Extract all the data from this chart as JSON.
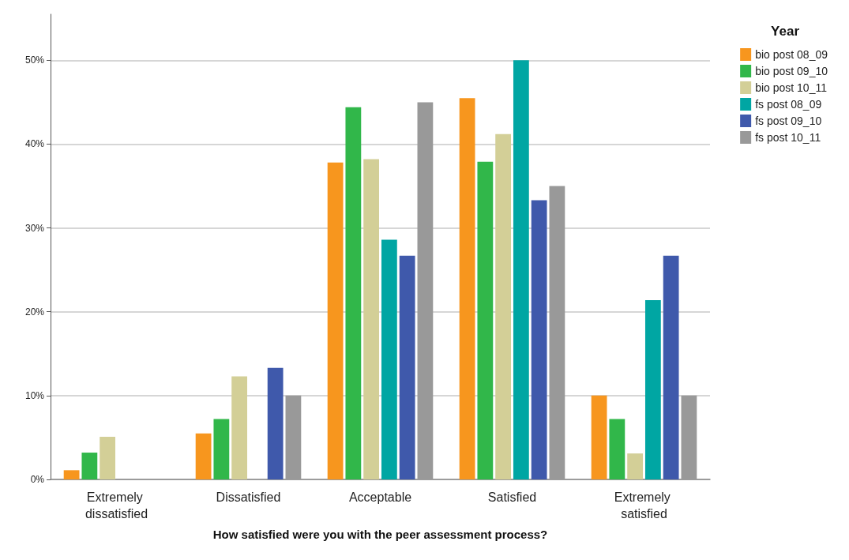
{
  "chart_data": {
    "type": "bar",
    "xlabel": "How satisfied were you with the peer assessment process?",
    "legend_title": "Year",
    "categories": [
      "Extremely dissatisfied",
      "Dissatisfied",
      "Acceptable",
      "Satisfied",
      "Extremely satisfied"
    ],
    "series": [
      {
        "name": "bio post 08_09",
        "color": "#f7961e",
        "values": [
          1.1,
          5.5,
          37.8,
          45.5,
          10
        ]
      },
      {
        "name": "bio post 09_10",
        "color": "#31b74a",
        "values": [
          3.2,
          7.2,
          44.4,
          37.9,
          7.2
        ]
      },
      {
        "name": "bio post 10_11",
        "color": "#d3cf97",
        "values": [
          5.1,
          12.3,
          38.2,
          41.2,
          3.1
        ]
      },
      {
        "name": "fs post 08_09",
        "color": "#00a6a3",
        "values": [
          0,
          0,
          28.6,
          50,
          21.4
        ]
      },
      {
        "name": "fs post 09_10",
        "color": "#3f59ab",
        "values": [
          0,
          13.3,
          26.7,
          33.3,
          26.7
        ]
      },
      {
        "name": "fs post 10_11",
        "color": "#999999",
        "values": [
          0,
          10,
          45,
          35,
          10
        ]
      }
    ],
    "ylim": [
      0,
      55.5
    ],
    "yticks": [
      {
        "value": 0,
        "label": "0%"
      },
      {
        "value": 10,
        "label": "10%"
      },
      {
        "value": 20,
        "label": "20%"
      },
      {
        "value": 30,
        "label": "30%"
      },
      {
        "value": 40,
        "label": "40%"
      },
      {
        "value": 50,
        "label": "50%"
      }
    ],
    "grid": "y",
    "legend": "top right"
  }
}
